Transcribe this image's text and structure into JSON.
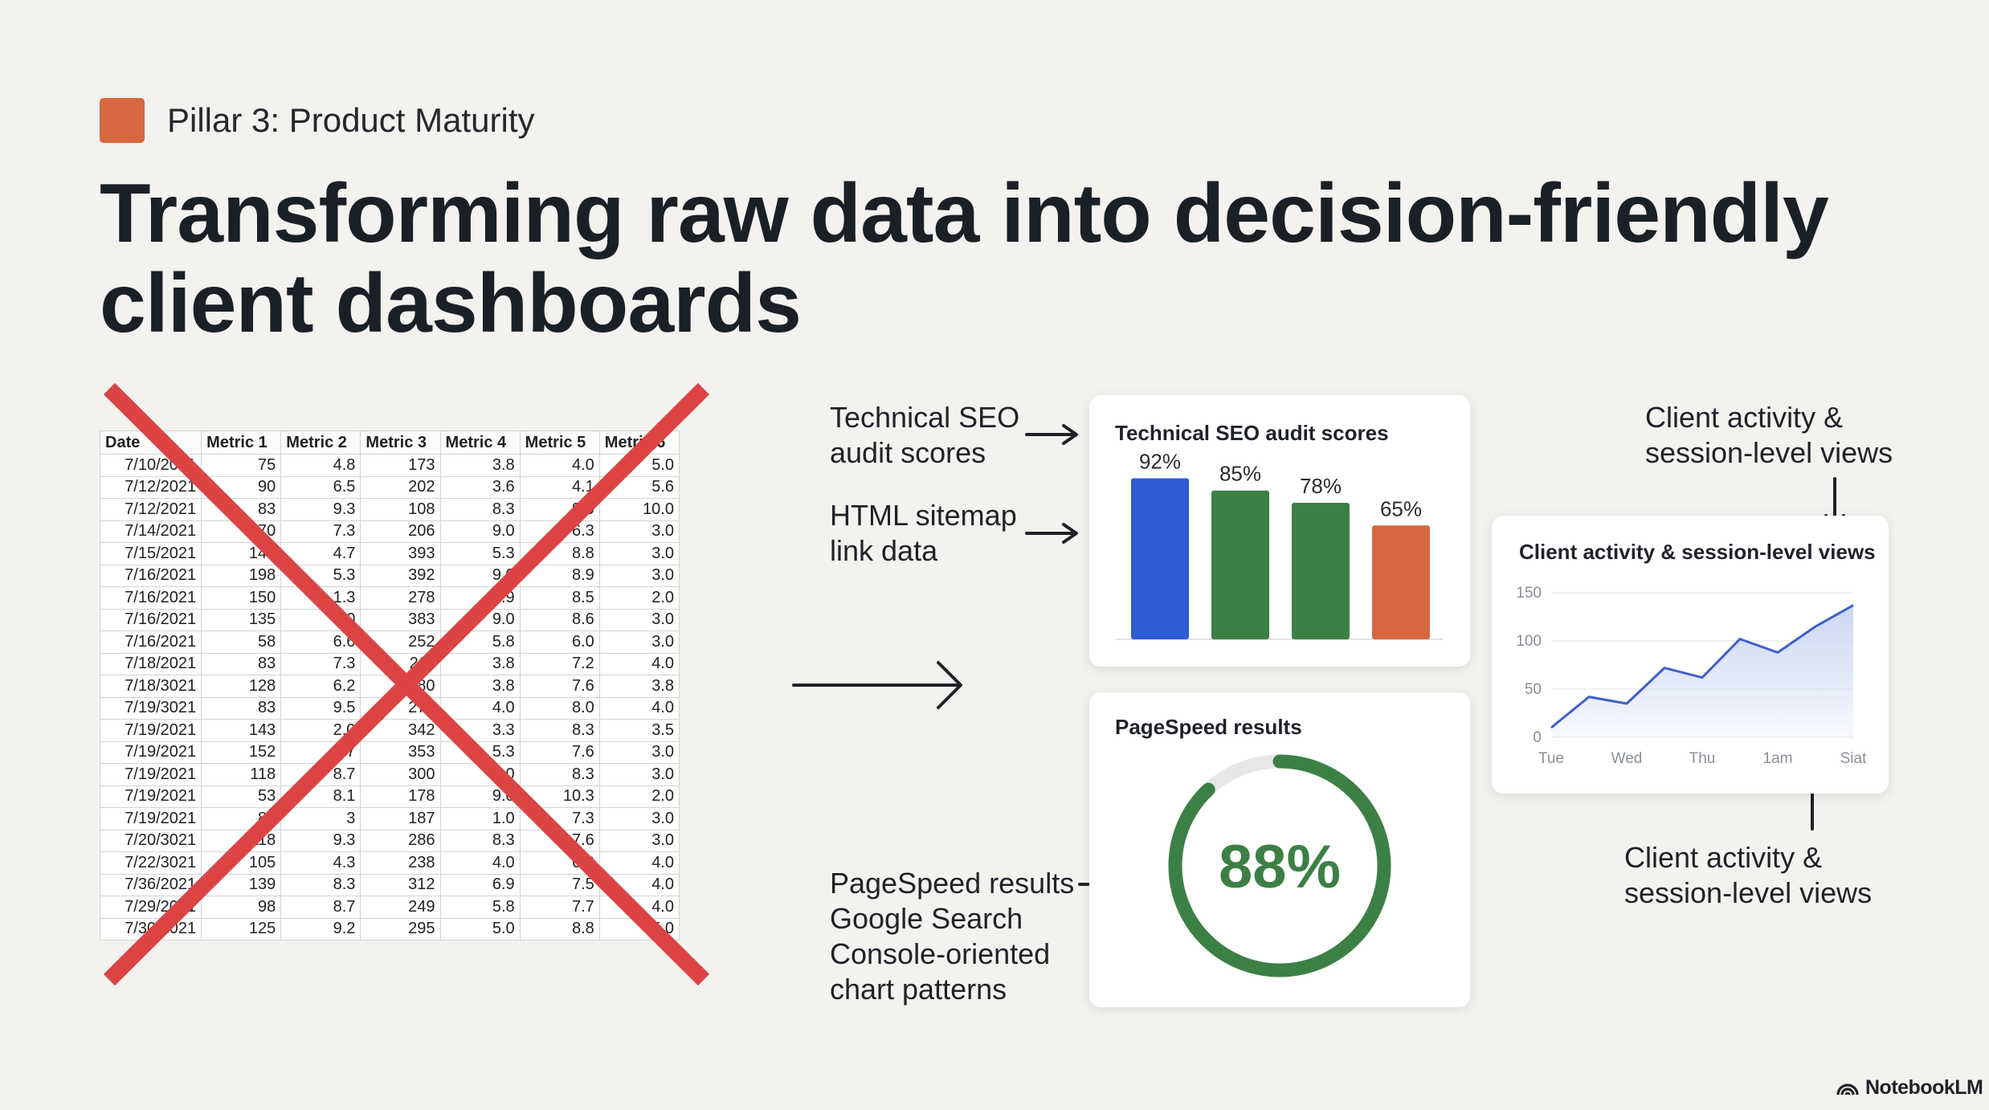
{
  "pillar": {
    "label": "Pillar 3: Product Maturity",
    "color": "#d8663f"
  },
  "headline": "Transforming raw data into decision-friendly client dashboards",
  "spreadsheet": {
    "headers": [
      "Date",
      "Metric 1",
      "Metric 2",
      "Metric 3",
      "Metric 4",
      "Metric 5",
      "Metric 6"
    ],
    "rows": [
      [
        "7/10/2021",
        "75",
        "4.8",
        "173",
        "3.8",
        "4.0",
        "5.0"
      ],
      [
        "7/12/2021",
        "90",
        "6.5",
        "202",
        "3.6",
        "4.1",
        "5.6"
      ],
      [
        "7/12/2021",
        "83",
        "9.3",
        "108",
        "8.3",
        "9.0",
        "10.0"
      ],
      [
        "7/14/2021",
        "70",
        "7.3",
        "206",
        "9.0",
        "6.3",
        "3.0"
      ],
      [
        "7/15/2021",
        "140",
        "4.7",
        "393",
        "5.3",
        "8.8",
        "3.0"
      ],
      [
        "7/16/2021",
        "198",
        "5.3",
        "392",
        "9.0",
        "8.9",
        "3.0"
      ],
      [
        "7/16/2021",
        "150",
        "1.3",
        "278",
        "8.9",
        "8.5",
        "2.0"
      ],
      [
        "7/16/2021",
        "135",
        "9.0",
        "383",
        "9.0",
        "8.6",
        "3.0"
      ],
      [
        "7/16/2021",
        "58",
        "6.6",
        "252",
        "5.8",
        "6.0",
        "3.0"
      ],
      [
        "7/18/2021",
        "83",
        "7.3",
        "211",
        "3.8",
        "7.2",
        "4.0"
      ],
      [
        "7/18/3021",
        "128",
        "6.2",
        "280",
        "3.8",
        "7.6",
        "3.8"
      ],
      [
        "7/19/3021",
        "83",
        "9.5",
        "270",
        "4.0",
        "8.0",
        "4.0"
      ],
      [
        "7/19/2021",
        "143",
        "2.0",
        "342",
        "3.3",
        "8.3",
        "3.5"
      ],
      [
        "7/19/2021",
        "152",
        "4.7",
        "353",
        "5.3",
        "7.6",
        "3.0"
      ],
      [
        "7/19/2021",
        "118",
        "8.7",
        "300",
        "9.0",
        "8.3",
        "3.0"
      ],
      [
        "7/19/2021",
        "53",
        "8.1",
        "178",
        "9.0",
        "10.3",
        "2.0"
      ],
      [
        "7/19/2021",
        "84",
        "3",
        "187",
        "1.0",
        "7.3",
        "3.0"
      ],
      [
        "7/20/3021",
        "118",
        "9.3",
        "286",
        "8.3",
        "7.6",
        "3.0"
      ],
      [
        "7/22/3021",
        "105",
        "4.3",
        "238",
        "4.0",
        "6.8",
        "4.0"
      ],
      [
        "7/36/2021",
        "139",
        "8.3",
        "312",
        "6.9",
        "7.5",
        "4.0"
      ],
      [
        "7/29/2021",
        "98",
        "8.7",
        "249",
        "5.8",
        "7.7",
        "4.0"
      ],
      [
        "7/30/2021",
        "125",
        "9.2",
        "295",
        "5.0",
        "8.8",
        "5.0"
      ]
    ],
    "cross_color": "#dc4444"
  },
  "callouts": {
    "seo": "Technical SEO\naudit scores",
    "sitemap": "HTML sitemap\nlink data",
    "pagespeed": "PageSpeed results\nGoogle Search\nConsole-oriented\nchart patterns",
    "activity_top": "Client activity &\nsession-level views",
    "activity_bottom": "Client activity &\nsession-level views"
  },
  "seo_card": {
    "title": "Technical SEO audit scores",
    "chart_data": {
      "type": "bar",
      "categories": [
        "",
        "",
        "",
        ""
      ],
      "values": [
        92,
        85,
        78,
        65
      ],
      "labels": [
        "92%",
        "85%",
        "78%",
        "65%"
      ],
      "colors": [
        "#2f5bd6",
        "#3c8046",
        "#3c8046",
        "#d8663f"
      ],
      "ylim": [
        0,
        100
      ]
    }
  },
  "pagespeed_card": {
    "title": "PageSpeed results",
    "gauge": {
      "value": 88,
      "label": "88%",
      "color": "#3c8046",
      "track_color": "#e7e7e7"
    }
  },
  "activity_card": {
    "title": "Client activity & session-level views",
    "chart_data": {
      "type": "area",
      "x_ticks": [
        "Tue",
        "Wed",
        "Thu",
        "1am",
        "Siat"
      ],
      "y_ticks": [
        "0",
        "50",
        "100",
        "150"
      ],
      "ylim": [
        0,
        150
      ],
      "x": [
        0,
        0.5,
        1,
        1.5,
        2,
        2.5,
        3,
        3.5,
        4
      ],
      "values": [
        10,
        42,
        35,
        72,
        62,
        102,
        88,
        115,
        137
      ],
      "grid": true,
      "line_color": "#3f5fc9",
      "fill_color": "#c9d4f2"
    }
  },
  "arrows_color": "#1f2228",
  "logo": {
    "icon": "notebook-icon",
    "label": "NotebookLM"
  }
}
